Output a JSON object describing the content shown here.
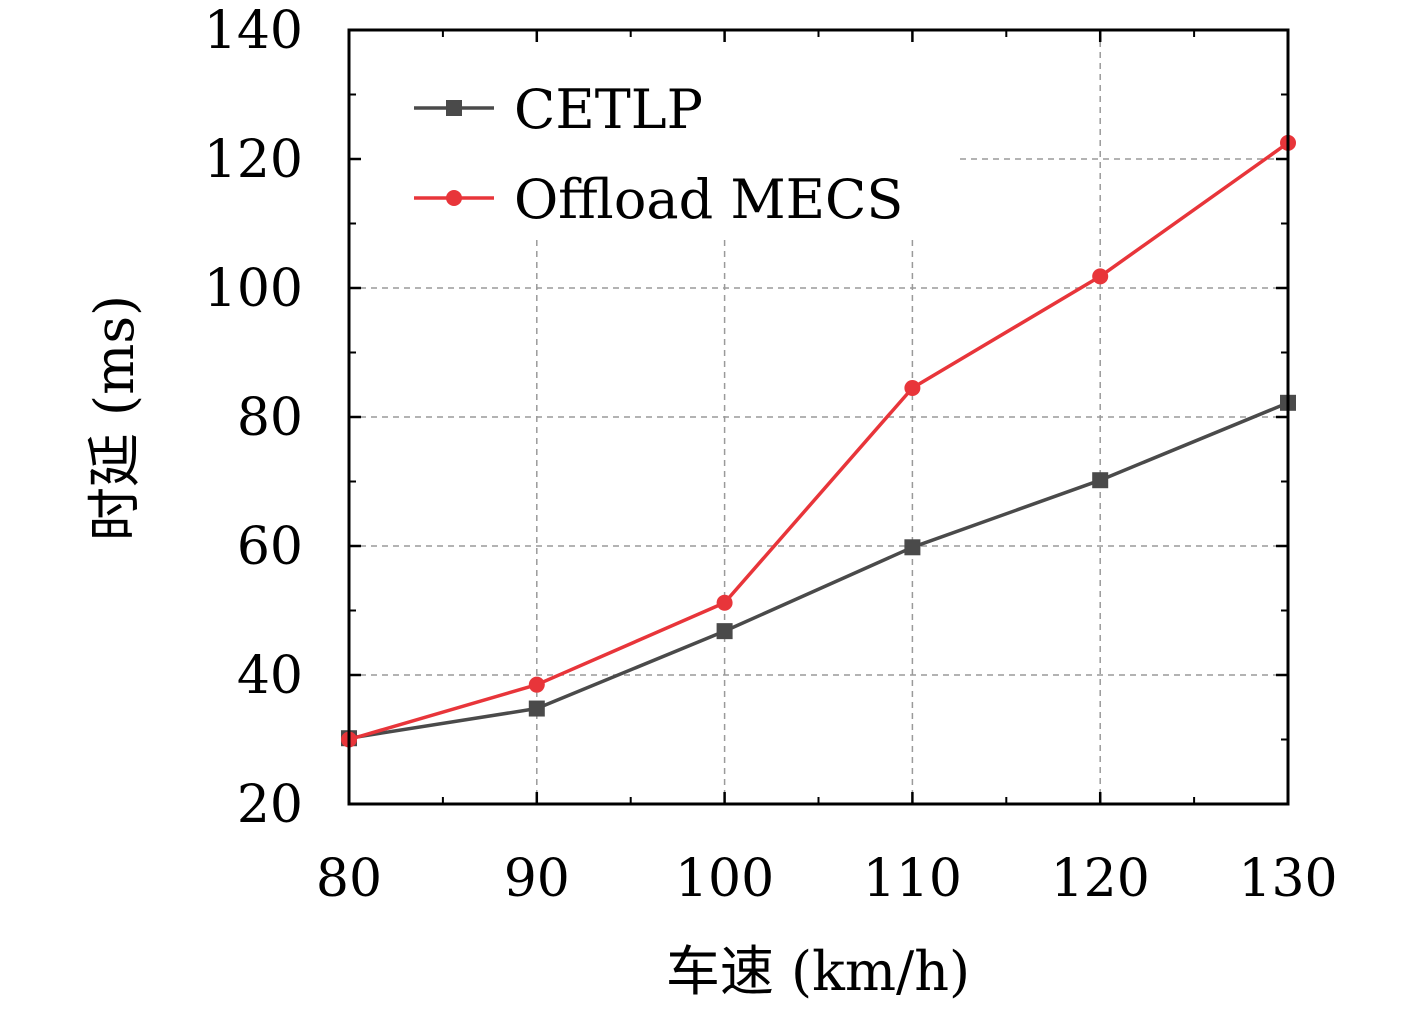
{
  "chart_data": {
    "type": "line",
    "xlabel": "车速 (km/h)",
    "ylabel": "时延 (ms)",
    "xlim": [
      80,
      130
    ],
    "ylim": [
      20,
      140
    ],
    "xticks": [
      80,
      90,
      100,
      110,
      120,
      130
    ],
    "yticks": [
      20,
      40,
      60,
      80,
      100,
      120,
      140
    ],
    "grid": true,
    "legend_position": "top-left",
    "x": [
      80,
      90,
      100,
      110,
      120,
      130
    ],
    "series": [
      {
        "name": "CETLP",
        "values": [
          30.2,
          34.8,
          46.8,
          59.8,
          70.2,
          82.2
        ],
        "color": "#4a4a4a",
        "marker": "square"
      },
      {
        "name": "Offload MECS",
        "values": [
          30.0,
          38.5,
          51.2,
          84.5,
          101.8,
          122.5
        ],
        "color": "#e8353a",
        "marker": "circle"
      }
    ]
  }
}
